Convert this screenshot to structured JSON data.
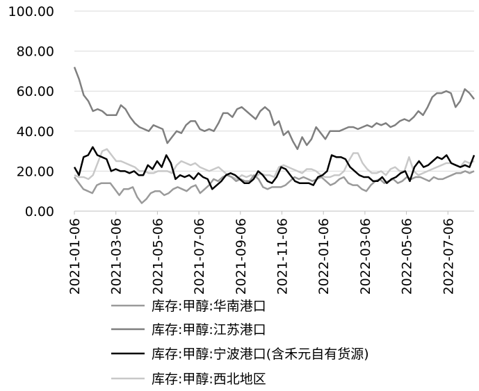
{
  "chart_data": {
    "type": "line",
    "ylim": [
      0,
      100
    ],
    "y_ticks": [
      "100.00",
      "80.00",
      "60.00",
      "40.00",
      "20.00",
      "0.00"
    ],
    "y_tick_values": [
      100,
      80,
      60,
      40,
      20,
      0
    ],
    "x_ticks": [
      "2021-01-06",
      "2021-03-06",
      "2021-05-06",
      "2021-07-06",
      "2021-09-06",
      "2021-11-06",
      "2022-01-06",
      "2022-03-06",
      "2022-05-06",
      "2022-07-06"
    ],
    "grid": "horizontal",
    "legend_position": "bottom",
    "series": [
      {
        "name": "库存:甲醇:华南港口",
        "color": "#9a9a9a",
        "values": [
          17,
          14,
          11,
          10,
          9,
          13,
          14,
          14,
          14,
          11,
          8,
          11,
          11,
          12,
          7,
          4,
          6,
          9,
          10,
          10,
          8,
          9,
          11,
          12,
          11,
          10,
          12,
          13,
          9,
          11,
          13,
          16,
          15,
          17,
          18,
          17,
          15,
          16,
          15,
          15,
          18,
          16,
          12,
          11,
          12,
          12,
          12,
          13,
          15,
          17,
          16,
          17,
          16,
          15,
          16,
          17,
          15,
          13,
          14,
          16,
          17,
          14,
          13,
          13,
          11,
          10,
          13,
          15,
          16,
          14,
          15,
          16,
          14,
          15,
          17,
          16,
          17,
          17,
          16,
          15,
          17,
          16,
          16,
          17,
          18,
          19,
          19,
          20,
          19,
          20
        ]
      },
      {
        "name": "库存:甲醇:江苏港口",
        "color": "#7f7f7f",
        "values": [
          72,
          66,
          58,
          55,
          50,
          51,
          50,
          48,
          48,
          48,
          53,
          51,
          47,
          44,
          42,
          41,
          40,
          43,
          42,
          41,
          34,
          37,
          40,
          39,
          43,
          45,
          45,
          41,
          40,
          41,
          40,
          44,
          49,
          49,
          47,
          51,
          52,
          50,
          48,
          46,
          50,
          52,
          50,
          43,
          45,
          38,
          40,
          35,
          31,
          37,
          33,
          36,
          42,
          39,
          36,
          40,
          40,
          40,
          41,
          42,
          42,
          41,
          42,
          43,
          42,
          44,
          43,
          44,
          42,
          43,
          45,
          46,
          45,
          47,
          50,
          48,
          52,
          57,
          59,
          59,
          60,
          59,
          52,
          55,
          61,
          59,
          56
        ]
      },
      {
        "name": "库存:甲醇:宁波港口(含禾元自有货源)",
        "color": "#000000",
        "values": [
          22,
          18,
          27,
          28,
          32,
          28,
          27,
          26,
          20,
          21,
          20,
          20,
          19,
          20,
          18,
          18,
          23,
          21,
          25,
          22,
          28,
          24,
          16,
          18,
          17,
          18,
          16,
          19,
          17,
          16,
          11,
          13,
          15,
          18,
          19,
          18,
          16,
          14,
          14,
          16,
          20,
          18,
          15,
          14,
          17,
          22,
          21,
          18,
          15,
          14,
          14,
          14,
          13,
          17,
          18,
          20,
          28,
          27,
          27,
          26,
          22,
          20,
          18,
          17,
          17,
          15,
          15,
          17,
          14,
          16,
          17,
          19,
          20,
          15,
          22,
          25,
          22,
          23,
          25,
          27,
          26,
          28,
          24,
          23,
          22,
          23,
          22,
          28
        ]
      },
      {
        "name": "库存:甲醇:西北地区",
        "color": "#c8c8c8",
        "values": [
          18,
          17,
          17,
          16,
          18,
          24,
          30,
          31,
          28,
          25,
          25,
          24,
          23,
          22,
          20,
          20,
          19,
          19,
          20,
          20,
          20,
          19,
          23,
          25,
          24,
          23,
          24,
          22,
          21,
          20,
          21,
          22,
          20,
          18,
          17,
          16,
          18,
          17,
          18,
          17,
          19,
          18,
          18,
          17,
          22,
          23,
          22,
          21,
          20,
          19,
          21,
          21,
          20,
          18,
          17,
          17,
          18,
          18,
          20,
          25,
          29,
          29,
          24,
          21,
          19,
          19,
          20,
          18,
          21,
          22,
          20,
          20,
          27,
          20,
          18,
          19,
          20,
          21,
          22,
          23,
          24,
          24,
          23,
          22,
          25,
          24,
          25
        ]
      }
    ]
  }
}
